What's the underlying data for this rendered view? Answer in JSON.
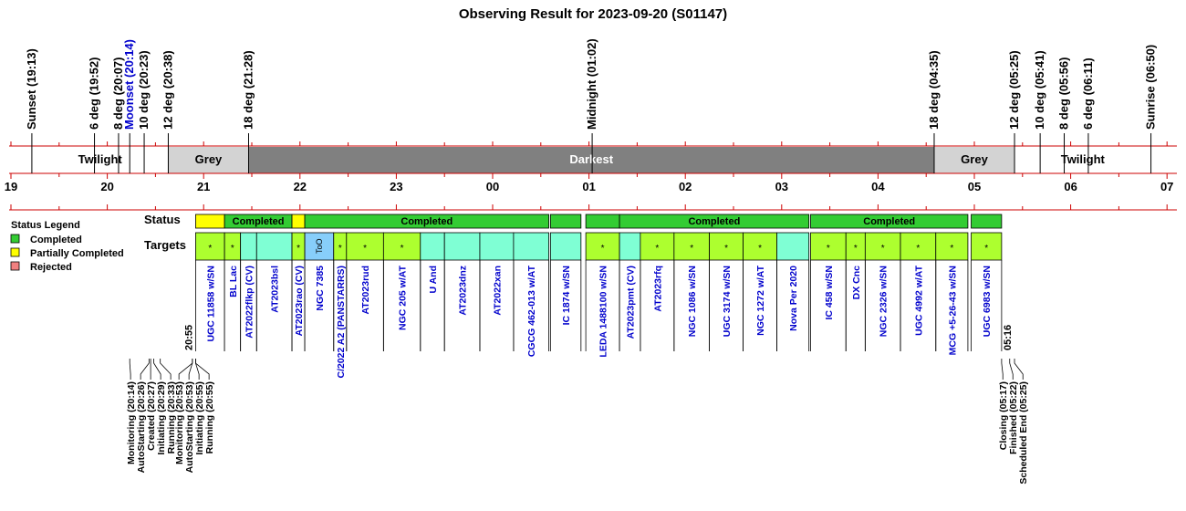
{
  "chart_data": {
    "type": "timeline",
    "title": "Observing Result for 2023-09-20 (S01147)",
    "time_axis": {
      "start": 19.0,
      "end": 31.0,
      "hour_labels": [
        "19",
        "20",
        "21",
        "22",
        "23",
        "00",
        "01",
        "02",
        "03",
        "04",
        "05",
        "06",
        "07"
      ]
    },
    "events": [
      {
        "label": "Sunset (19:13)",
        "t": 19.217,
        "color": "#000000"
      },
      {
        "label": "6 deg (19:52)",
        "t": 19.867,
        "color": "#000000"
      },
      {
        "label": "8 deg (20:07)",
        "t": 20.117,
        "color": "#000000"
      },
      {
        "label": "Moonset (20:14)",
        "t": 20.233,
        "color": "#0000cc"
      },
      {
        "label": "10 deg (20:23)",
        "t": 20.383,
        "color": "#000000"
      },
      {
        "label": "12 deg (20:38)",
        "t": 20.633,
        "color": "#000000"
      },
      {
        "label": "18 deg (21:28)",
        "t": 21.467,
        "color": "#000000"
      },
      {
        "label": "Midnight (01:02)",
        "t": 25.033,
        "color": "#000000"
      },
      {
        "label": "18 deg (04:35)",
        "t": 28.583,
        "color": "#000000"
      },
      {
        "label": "12 deg (05:25)",
        "t": 29.417,
        "color": "#000000"
      },
      {
        "label": "10 deg (05:41)",
        "t": 29.683,
        "color": "#000000"
      },
      {
        "label": "8 deg (05:56)",
        "t": 29.933,
        "color": "#000000"
      },
      {
        "label": "6 deg (06:11)",
        "t": 30.183,
        "color": "#000000"
      },
      {
        "label": "Sunrise (06:50)",
        "t": 30.833,
        "color": "#000000"
      }
    ],
    "phases": [
      {
        "label": "Twilight",
        "start": 19.217,
        "end": 20.633,
        "color": "#ffffff",
        "text_color": "#000000"
      },
      {
        "label": "Grey",
        "start": 20.633,
        "end": 21.467,
        "color": "#d3d3d3",
        "text_color": "#000000"
      },
      {
        "label": "Darkest",
        "start": 21.467,
        "end": 28.583,
        "color": "#808080",
        "text_color": "#ffffff"
      },
      {
        "label": "Grey",
        "start": 28.583,
        "end": 29.417,
        "color": "#d3d3d3",
        "text_color": "#000000"
      },
      {
        "label": "Twilight",
        "start": 29.417,
        "end": 30.833,
        "color": "#ffffff",
        "text_color": "#000000"
      }
    ],
    "status_segments": [
      {
        "label": "",
        "start": 20.917,
        "end": 21.217,
        "status": "Partially Completed"
      },
      {
        "label": "Completed",
        "start": 21.217,
        "end": 21.917,
        "status": "Completed"
      },
      {
        "label": "",
        "start": 21.917,
        "end": 22.05,
        "status": "Partially Completed"
      },
      {
        "label": "Completed",
        "start": 22.05,
        "end": 24.583,
        "status": "Completed"
      },
      {
        "label": "",
        "start": 24.6,
        "end": 24.917,
        "status": "Completed"
      },
      {
        "label": "",
        "start": 24.967,
        "end": 25.317,
        "status": "Completed"
      },
      {
        "label": "Completed",
        "start": 25.317,
        "end": 27.283,
        "status": "Completed"
      },
      {
        "label": "Completed",
        "start": 27.3,
        "end": 28.933,
        "status": "Completed"
      },
      {
        "label": "",
        "start": 28.967,
        "end": 29.283,
        "status": "Completed"
      }
    ],
    "targets": [
      {
        "name": "UGC 11858 w/SN",
        "start": 20.917,
        "end": 21.217,
        "kind": "sn"
      },
      {
        "name": "BL Lac",
        "start": 21.217,
        "end": 21.383,
        "kind": "sn"
      },
      {
        "name": "AT2022flkp (CV)",
        "start": 21.383,
        "end": 21.55,
        "kind": "other"
      },
      {
        "name": "AT2023bsl",
        "start": 21.55,
        "end": 21.917,
        "kind": "other"
      },
      {
        "name": "AT2023rao (CV)",
        "start": 21.917,
        "end": 22.05,
        "kind": "sn"
      },
      {
        "name": "NGC 7385",
        "start": 22.05,
        "end": 22.35,
        "kind": "too"
      },
      {
        "name": "C/2022 A2 (PANSTARRS)",
        "start": 22.35,
        "end": 22.483,
        "kind": "sn"
      },
      {
        "name": "AT2023rud",
        "start": 22.483,
        "end": 22.867,
        "kind": "sn"
      },
      {
        "name": "NGC 205 w/AT",
        "start": 22.867,
        "end": 23.25,
        "kind": "sn"
      },
      {
        "name": "U And",
        "start": 23.25,
        "end": 23.5,
        "kind": "other"
      },
      {
        "name": "AT2023dnz",
        "start": 23.5,
        "end": 23.867,
        "kind": "other"
      },
      {
        "name": "AT2022xan",
        "start": 23.867,
        "end": 24.217,
        "kind": "other"
      },
      {
        "name": "CGCG 462-013 w/AT",
        "start": 24.217,
        "end": 24.583,
        "kind": "other"
      },
      {
        "name": "IC 1874 w/SN",
        "start": 24.6,
        "end": 24.917,
        "kind": "other"
      },
      {
        "name": "LEDA 1488100 w/SN",
        "start": 24.967,
        "end": 25.317,
        "kind": "sn"
      },
      {
        "name": "AT2023pmt (CV)",
        "start": 25.317,
        "end": 25.533,
        "kind": "other"
      },
      {
        "name": "AT2023rfq",
        "start": 25.533,
        "end": 25.883,
        "kind": "sn"
      },
      {
        "name": "NGC 1086 w/SN",
        "start": 25.883,
        "end": 26.25,
        "kind": "sn"
      },
      {
        "name": "UGC 3174 w/SN",
        "start": 26.25,
        "end": 26.6,
        "kind": "sn"
      },
      {
        "name": "NGC 1272 w/AT",
        "start": 26.6,
        "end": 26.95,
        "kind": "sn"
      },
      {
        "name": "Nova Per 2020",
        "start": 26.95,
        "end": 27.283,
        "kind": "other"
      },
      {
        "name": "IC 458 w/SN",
        "start": 27.3,
        "end": 27.667,
        "kind": "sn"
      },
      {
        "name": "DX Cnc",
        "start": 27.667,
        "end": 27.867,
        "kind": "sn"
      },
      {
        "name": "NGC 2326 w/SN",
        "start": 27.867,
        "end": 28.233,
        "kind": "sn"
      },
      {
        "name": "UGC 4992 w/AT",
        "start": 28.233,
        "end": 28.6,
        "kind": "sn"
      },
      {
        "name": "MCG +5-26-43 w/SN",
        "start": 28.6,
        "end": 28.933,
        "kind": "sn"
      },
      {
        "name": "UGC 6983 w/SN",
        "start": 28.967,
        "end": 29.283,
        "kind": "sn"
      }
    ],
    "start_marker": {
      "label": "20:55",
      "t": 20.917
    },
    "end_marker": {
      "label": "05:16",
      "t": 29.267
    },
    "log_groups": [
      {
        "t": 20.45,
        "entries": [
          {
            "label": "Monitoring (20:14)",
            "t": 20.233
          },
          {
            "label": "AutoStarting (20:26)",
            "t": 20.433
          },
          {
            "label": "Created (20:27)",
            "t": 20.45
          },
          {
            "label": "Initiating (20:29)",
            "t": 20.483
          },
          {
            "label": "Running (20:33)",
            "t": 20.55
          }
        ]
      },
      {
        "t": 20.9,
        "entries": [
          {
            "label": "Monitoring (20:53)",
            "t": 20.883
          },
          {
            "label": "AutoStarting (20:53)",
            "t": 20.883
          },
          {
            "label": "Initiating (20:55)",
            "t": 20.917
          },
          {
            "label": "Running (20:55)",
            "t": 20.917
          }
        ]
      },
      {
        "t": 29.4,
        "entries": [
          {
            "label": "Closing (05:17)",
            "t": 29.283
          },
          {
            "label": "Finished (05:22)",
            "t": 29.367
          },
          {
            "label": "Scheduled End (05:25)",
            "t": 29.417
          }
        ]
      }
    ],
    "row_labels": {
      "status": "Status",
      "targets": "Targets"
    },
    "legend": {
      "title": "Status Legend",
      "placement": "left",
      "items": [
        {
          "label": "Completed",
          "color": "#33cc33"
        },
        {
          "label": "Partially Completed",
          "color": "#ffff00"
        },
        {
          "label": "Rejected",
          "color": "#f08080"
        }
      ]
    },
    "colors": {
      "completed": "#33cc33",
      "partial": "#ffff00",
      "target_sn": "#adff2f",
      "target_other": "#7fffd4",
      "target_too": "#87cefa",
      "axis": "#cc0000",
      "name_text": "#0000cc"
    },
    "too_label": "ToO",
    "sn_mark": "*"
  }
}
